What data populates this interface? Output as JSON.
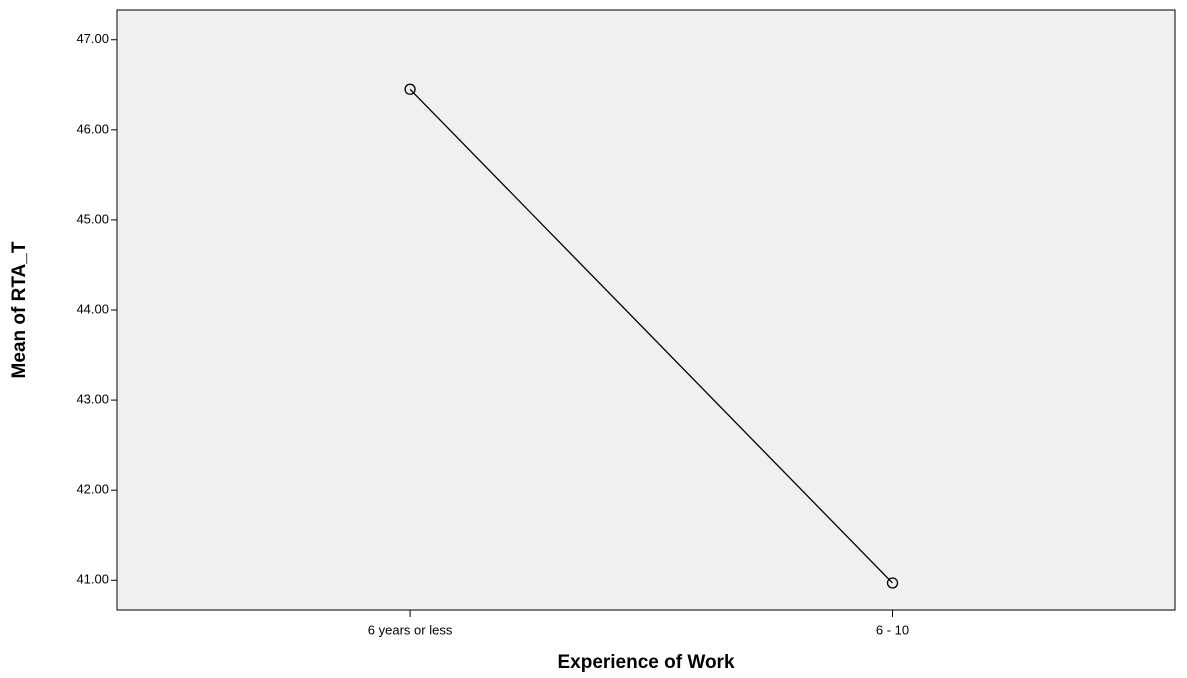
{
  "chart_data": {
    "type": "line",
    "x_label": "Experience of Work",
    "y_label": "Mean of RTA_T",
    "categories": [
      "6 years or less",
      "6 - 10"
    ],
    "values": [
      46.45,
      40.97
    ],
    "color": "#000000",
    "ylim": [
      40.67,
      47.33
    ],
    "yticks": [
      {
        "value": 41,
        "label": "41.00"
      },
      {
        "value": 42,
        "label": "42.00"
      },
      {
        "value": 43,
        "label": "43.00"
      },
      {
        "value": 44,
        "label": "44.00"
      },
      {
        "value": 45,
        "label": "45.00"
      },
      {
        "value": 46,
        "label": "46.00"
      },
      {
        "value": 47,
        "label": "47.00"
      }
    ],
    "grid": false
  }
}
